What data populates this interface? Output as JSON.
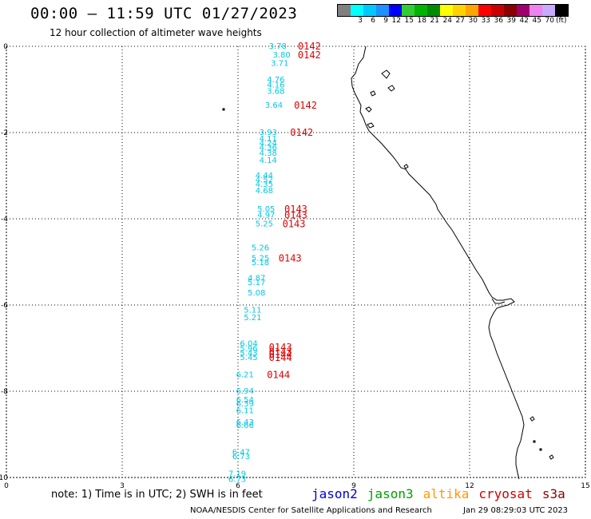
{
  "header": {
    "title": "00:00 – 11:59 UTC 01/27/2023",
    "subtitle": "12 hour collection of altimeter wave heights"
  },
  "legend": {
    "unit": "(ft)",
    "bins": [
      {
        "label": "",
        "color": "#808080"
      },
      {
        "label": "3",
        "color": "#00ffff"
      },
      {
        "label": "6",
        "color": "#00c8ff"
      },
      {
        "label": "9",
        "color": "#1e90ff"
      },
      {
        "label": "12",
        "color": "#0000ff"
      },
      {
        "label": "15",
        "color": "#32cd32"
      },
      {
        "label": "18",
        "color": "#00b400"
      },
      {
        "label": "21",
        "color": "#008c00"
      },
      {
        "label": "24",
        "color": "#ffff00"
      },
      {
        "label": "27",
        "color": "#ffd200"
      },
      {
        "label": "30",
        "color": "#ffa500"
      },
      {
        "label": "33",
        "color": "#ff0000"
      },
      {
        "label": "36",
        "color": "#c80000"
      },
      {
        "label": "39",
        "color": "#8b0000"
      },
      {
        "label": "42",
        "color": "#a0006e"
      },
      {
        "label": "45",
        "color": "#ee82ee"
      },
      {
        "label": "70",
        "color": "#c8aaff"
      },
      {
        "label": "",
        "color": "#000000"
      }
    ]
  },
  "axes": {
    "x_ticks": [
      {
        "value": 0,
        "label": "0"
      },
      {
        "value": 3,
        "label": "3"
      },
      {
        "value": 6,
        "label": "6"
      },
      {
        "value": 9,
        "label": "9"
      },
      {
        "value": 12,
        "label": "12"
      },
      {
        "value": 15,
        "label": "15"
      }
    ],
    "y_ticks": [
      {
        "value": 0,
        "label": "0"
      },
      {
        "value": -2,
        "label": "-2"
      },
      {
        "value": -4,
        "label": "-4"
      },
      {
        "value": -6,
        "label": "-6"
      },
      {
        "value": -8,
        "label": "-8"
      },
      {
        "value": -10,
        "label": "-10"
      }
    ],
    "xlim": [
      0,
      15
    ],
    "ylim": [
      -10,
      0
    ],
    "grid": true
  },
  "colors": {
    "swh": "#00c8e6",
    "time": "#e00000",
    "coast": "#000000",
    "grid": "#000000"
  },
  "chart_data": {
    "type": "scatter",
    "swh_labels": [
      {
        "lon": 6.8,
        "lat": 0.0,
        "text": "3.78"
      },
      {
        "lon": 6.9,
        "lat": -0.2,
        "text": "3.80"
      },
      {
        "lon": 6.85,
        "lat": -0.4,
        "text": "3.71"
      },
      {
        "lon": 6.75,
        "lat": -0.78,
        "text": "4.76"
      },
      {
        "lon": 6.75,
        "lat": -0.9,
        "text": "4.16"
      },
      {
        "lon": 6.75,
        "lat": -1.05,
        "text": "3.68"
      },
      {
        "lon": 6.7,
        "lat": -1.37,
        "text": "3.64"
      },
      {
        "lon": 6.55,
        "lat": -2.0,
        "text": "3.93"
      },
      {
        "lon": 6.55,
        "lat": -2.15,
        "text": "4.11"
      },
      {
        "lon": 6.55,
        "lat": -2.25,
        "text": "4.24"
      },
      {
        "lon": 6.55,
        "lat": -2.35,
        "text": "4.36"
      },
      {
        "lon": 6.55,
        "lat": -2.48,
        "text": "4.38"
      },
      {
        "lon": 6.55,
        "lat": -2.65,
        "text": "4.14"
      },
      {
        "lon": 6.45,
        "lat": -3.0,
        "text": "4.44"
      },
      {
        "lon": 6.45,
        "lat": -3.1,
        "text": "4.52"
      },
      {
        "lon": 6.45,
        "lat": -3.2,
        "text": "4.35"
      },
      {
        "lon": 6.45,
        "lat": -3.35,
        "text": "4.68"
      },
      {
        "lon": 6.5,
        "lat": -3.78,
        "text": "5.05"
      },
      {
        "lon": 6.5,
        "lat": -3.92,
        "text": "4.97"
      },
      {
        "lon": 6.45,
        "lat": -4.12,
        "text": "5.25"
      },
      {
        "lon": 6.35,
        "lat": -4.68,
        "text": "5.26"
      },
      {
        "lon": 6.35,
        "lat": -4.92,
        "text": "5.25"
      },
      {
        "lon": 6.35,
        "lat": -5.02,
        "text": "5.18"
      },
      {
        "lon": 6.25,
        "lat": -5.38,
        "text": "4.87"
      },
      {
        "lon": 6.25,
        "lat": -5.48,
        "text": "5.17"
      },
      {
        "lon": 6.25,
        "lat": -5.72,
        "text": "5.08"
      },
      {
        "lon": 6.15,
        "lat": -6.12,
        "text": "5.11"
      },
      {
        "lon": 6.15,
        "lat": -6.3,
        "text": "5.21"
      },
      {
        "lon": 6.05,
        "lat": -6.9,
        "text": "6.04"
      },
      {
        "lon": 6.05,
        "lat": -7.02,
        "text": "5.96"
      },
      {
        "lon": 6.05,
        "lat": -7.12,
        "text": "5.43"
      },
      {
        "lon": 6.05,
        "lat": -7.22,
        "text": "5.45"
      },
      {
        "lon": 5.95,
        "lat": -7.62,
        "text": "6.21"
      },
      {
        "lon": 5.95,
        "lat": -8.0,
        "text": "6.94"
      },
      {
        "lon": 5.95,
        "lat": -8.2,
        "text": "6.54"
      },
      {
        "lon": 5.95,
        "lat": -8.3,
        "text": "6.39"
      },
      {
        "lon": 5.95,
        "lat": -8.45,
        "text": "6.11"
      },
      {
        "lon": 5.95,
        "lat": -8.72,
        "text": "6.43"
      },
      {
        "lon": 5.95,
        "lat": -8.8,
        "text": "6.66"
      },
      {
        "lon": 5.85,
        "lat": -9.42,
        "text": "6.47"
      },
      {
        "lon": 5.85,
        "lat": -9.52,
        "text": "6.73"
      },
      {
        "lon": 5.75,
        "lat": -9.92,
        "text": "7.19"
      },
      {
        "lon": 5.75,
        "lat": -10.05,
        "text": "6.73"
      }
    ],
    "time_labels": [
      {
        "lon": 7.55,
        "lat": 0.0,
        "text": "0142"
      },
      {
        "lon": 7.55,
        "lat": -0.2,
        "text": "0142"
      },
      {
        "lon": 7.45,
        "lat": -1.37,
        "text": "0142"
      },
      {
        "lon": 7.35,
        "lat": -2.0,
        "text": "0142"
      },
      {
        "lon": 7.2,
        "lat": -3.78,
        "text": "0143"
      },
      {
        "lon": 7.2,
        "lat": -3.92,
        "text": "0143"
      },
      {
        "lon": 7.15,
        "lat": -4.12,
        "text": "0143"
      },
      {
        "lon": 7.05,
        "lat": -4.92,
        "text": "0143"
      },
      {
        "lon": 6.8,
        "lat": -6.98,
        "text": "0143"
      },
      {
        "lon": 6.8,
        "lat": -7.08,
        "text": "0143"
      },
      {
        "lon": 6.8,
        "lat": -7.15,
        "text": "0144"
      },
      {
        "lon": 6.8,
        "lat": -7.22,
        "text": "0144"
      },
      {
        "lon": 6.75,
        "lat": -7.62,
        "text": "0144"
      }
    ]
  },
  "satellites": [
    {
      "name": "jason2",
      "color": "#0000d0"
    },
    {
      "name": "jason3",
      "color": "#00a000"
    },
    {
      "name": "altika",
      "color": "#ff9900"
    },
    {
      "name": "cryosat",
      "color": "#d00000"
    },
    {
      "name": "s3a",
      "color": "#8b0000"
    }
  ],
  "footer": {
    "note": "note:  1) Time is in UTC;  2) SWH is in feet",
    "credit": "NOAA/NESDIS Center for Satellite Applications and Research",
    "timestamp": "Jan 29 08:29:03 UTC 2023"
  }
}
